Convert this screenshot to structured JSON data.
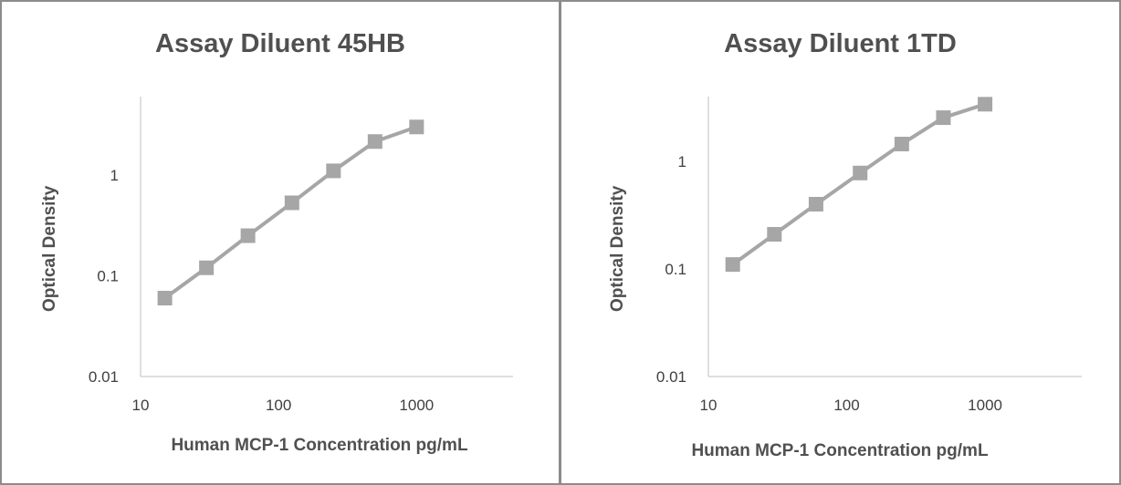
{
  "chart_data": [
    {
      "type": "line",
      "title": "Assay Diluent 45HB",
      "xlabel": "Human MCP-1 Concentration pg/mL",
      "ylabel": "Optical Density",
      "xscale": "log",
      "yscale": "log",
      "xlim": [
        10,
        5000
      ],
      "ylim": [
        0.01,
        6
      ],
      "xticks": [
        "10",
        "100",
        "1000"
      ],
      "yticks": [
        "0.01",
        "0.1",
        "1"
      ],
      "series": [
        {
          "name": "Assay Diluent 45HB",
          "x": [
            15,
            30,
            60,
            125,
            250,
            500,
            1000
          ],
          "y": [
            0.06,
            0.12,
            0.25,
            0.53,
            1.1,
            2.15,
            3.0
          ]
        }
      ],
      "color": "#a6a6a6"
    },
    {
      "type": "line",
      "title": "Assay Diluent 1TD",
      "xlabel": "Human MCP-1 Concentration pg/mL",
      "ylabel": "Optical Density",
      "xscale": "log",
      "yscale": "log",
      "xlim": [
        10,
        5000
      ],
      "ylim": [
        0.01,
        4
      ],
      "xticks": [
        "10",
        "100",
        "1000"
      ],
      "yticks": [
        "0.01",
        "0.1",
        "1"
      ],
      "series": [
        {
          "name": "Assay Diluent 1TD",
          "x": [
            15,
            30,
            60,
            125,
            250,
            500,
            1000
          ],
          "y": [
            0.11,
            0.21,
            0.4,
            0.78,
            1.45,
            2.55,
            3.4
          ]
        }
      ],
      "color": "#a6a6a6"
    }
  ]
}
